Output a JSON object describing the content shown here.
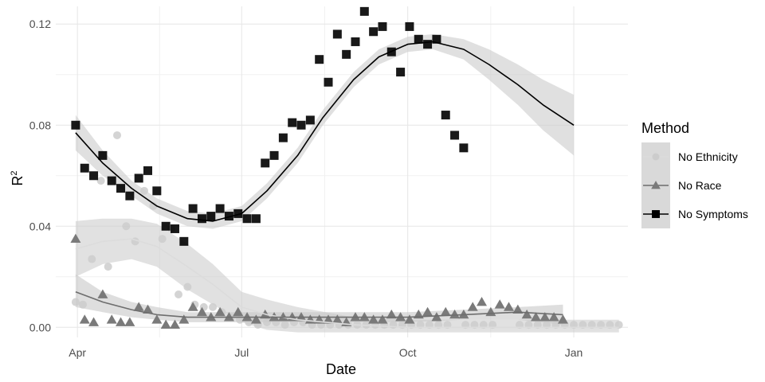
{
  "chart_data": {
    "type": "scatter",
    "title": "",
    "xlabel": "Date",
    "ylabel_base": "R",
    "ylabel_sup": "2",
    "x_ticks": [
      {
        "label": "Apr",
        "date": "2020-04-01"
      },
      {
        "label": "Jul",
        "date": "2020-07-01"
      },
      {
        "label": "Oct",
        "date": "2020-10-01"
      },
      {
        "label": "Jan",
        "date": "2021-01-01"
      }
    ],
    "xlim": [
      "2020-03-20",
      "2021-01-31"
    ],
    "y_ticks": [
      "0.00",
      "0.04",
      "0.08",
      "0.12"
    ],
    "ylim": [
      -0.004,
      0.127
    ],
    "grid": true,
    "legend": {
      "title": "Method",
      "position": "right",
      "entries": [
        "No Ethnicity",
        "No Race",
        "No Symptoms"
      ]
    },
    "series": [
      {
        "name": "No Ethnicity",
        "marker": "circle",
        "color": "#cccccc",
        "band_color": "#cdcdcd",
        "line_color": "#dcdcdc",
        "points": [
          [
            "2020-03-31",
            0.01
          ],
          [
            "2020-04-04",
            0.009
          ],
          [
            "2020-04-09",
            0.027
          ],
          [
            "2020-04-14",
            0.058
          ],
          [
            "2020-04-18",
            0.024
          ],
          [
            "2020-04-23",
            0.076
          ],
          [
            "2020-04-28",
            0.04
          ],
          [
            "2020-05-03",
            0.034
          ],
          [
            "2020-05-08",
            0.054
          ],
          [
            "2020-05-13",
            0.048
          ],
          [
            "2020-05-18",
            0.035
          ],
          [
            "2020-05-23",
            0.039
          ],
          [
            "2020-05-27",
            0.013
          ],
          [
            "2020-06-01",
            0.016
          ],
          [
            "2020-06-05",
            0.009
          ],
          [
            "2020-06-10",
            0.008
          ],
          [
            "2020-06-15",
            0.008
          ],
          [
            "2020-06-20",
            0.006
          ],
          [
            "2020-06-25",
            0.004
          ],
          [
            "2020-06-30",
            0.003
          ],
          [
            "2020-07-05",
            0.002
          ],
          [
            "2020-07-10",
            0.001
          ],
          [
            "2020-07-15",
            0.002
          ],
          [
            "2020-07-20",
            0.002
          ],
          [
            "2020-07-25",
            0.001
          ],
          [
            "2020-07-30",
            0.002
          ],
          [
            "2020-08-04",
            0.002
          ],
          [
            "2020-08-09",
            0.001
          ],
          [
            "2020-08-14",
            0.001
          ],
          [
            "2020-08-19",
            0.001
          ],
          [
            "2020-08-24",
            0.001
          ],
          [
            "2020-08-29",
            0.001
          ],
          [
            "2020-09-03",
            0.001
          ],
          [
            "2020-09-08",
            0.001
          ],
          [
            "2020-09-13",
            0.001
          ],
          [
            "2020-09-18",
            0.001
          ],
          [
            "2020-09-23",
            0.001
          ],
          [
            "2020-09-28",
            0.001
          ],
          [
            "2020-10-03",
            0.001
          ],
          [
            "2020-10-08",
            0.001
          ],
          [
            "2020-10-13",
            0.001
          ],
          [
            "2020-10-18",
            0.001
          ],
          [
            "2020-10-23",
            0.001
          ],
          [
            "2020-11-02",
            0.001
          ],
          [
            "2020-11-07",
            0.001
          ],
          [
            "2020-11-12",
            0.001
          ],
          [
            "2020-11-17",
            0.001
          ],
          [
            "2020-12-02",
            0.001
          ],
          [
            "2020-12-07",
            0.001
          ],
          [
            "2020-12-12",
            0.001
          ],
          [
            "2020-12-17",
            0.001
          ],
          [
            "2020-12-22",
            0.001
          ],
          [
            "2020-12-27",
            0.001
          ],
          [
            "2021-01-01",
            0.001
          ],
          [
            "2021-01-06",
            0.001
          ],
          [
            "2021-01-11",
            0.001
          ],
          [
            "2021-01-16",
            0.001
          ],
          [
            "2021-01-21",
            0.001
          ],
          [
            "2021-01-26",
            0.001
          ]
        ],
        "fit": [
          [
            "2020-03-31",
            0.031
          ],
          [
            "2020-04-15",
            0.034
          ],
          [
            "2020-05-01",
            0.035
          ],
          [
            "2020-05-15",
            0.032
          ],
          [
            "2020-06-01",
            0.024
          ],
          [
            "2020-06-15",
            0.017
          ],
          [
            "2020-07-01",
            0.008
          ],
          [
            "2020-07-15",
            0.005
          ],
          [
            "2020-08-01",
            0.003
          ],
          [
            "2020-09-01",
            0.001
          ],
          [
            "2020-10-01",
            0.0
          ],
          [
            "2020-11-01",
            0.0
          ],
          [
            "2020-12-01",
            0.0
          ],
          [
            "2021-01-01",
            0.0
          ],
          [
            "2021-01-26",
            0.0
          ]
        ],
        "band_lower": [
          0.02,
          0.025,
          0.027,
          0.024,
          0.015,
          0.009,
          0.002,
          -0.001,
          -0.002,
          -0.002,
          -0.002,
          -0.002,
          -0.002,
          -0.002,
          -0.002
        ],
        "band_upper": [
          0.042,
          0.043,
          0.043,
          0.041,
          0.033,
          0.025,
          0.014,
          0.011,
          0.008,
          0.004,
          0.003,
          0.003,
          0.003,
          0.003,
          0.003
        ]
      },
      {
        "name": "No Race",
        "marker": "triangle",
        "color": "#7a7a7a",
        "band_color": "#c8c8c8",
        "line_color": "#6e6e6e",
        "points": [
          [
            "2020-03-31",
            0.035
          ],
          [
            "2020-04-05",
            0.003
          ],
          [
            "2020-04-10",
            0.002
          ],
          [
            "2020-04-15",
            0.013
          ],
          [
            "2020-04-20",
            0.003
          ],
          [
            "2020-04-25",
            0.002
          ],
          [
            "2020-04-30",
            0.002
          ],
          [
            "2020-05-05",
            0.008
          ],
          [
            "2020-05-10",
            0.007
          ],
          [
            "2020-05-15",
            0.003
          ],
          [
            "2020-05-20",
            0.001
          ],
          [
            "2020-05-25",
            0.001
          ],
          [
            "2020-05-30",
            0.003
          ],
          [
            "2020-06-04",
            0.008
          ],
          [
            "2020-06-09",
            0.006
          ],
          [
            "2020-06-14",
            0.004
          ],
          [
            "2020-06-19",
            0.006
          ],
          [
            "2020-06-24",
            0.004
          ],
          [
            "2020-06-29",
            0.006
          ],
          [
            "2020-07-04",
            0.004
          ],
          [
            "2020-07-09",
            0.003
          ],
          [
            "2020-07-14",
            0.005
          ],
          [
            "2020-07-19",
            0.004
          ],
          [
            "2020-07-24",
            0.004
          ],
          [
            "2020-07-29",
            0.004
          ],
          [
            "2020-08-03",
            0.004
          ],
          [
            "2020-08-08",
            0.003
          ],
          [
            "2020-08-13",
            0.003
          ],
          [
            "2020-08-18",
            0.003
          ],
          [
            "2020-08-23",
            0.003
          ],
          [
            "2020-08-28",
            0.002
          ],
          [
            "2020-09-02",
            0.004
          ],
          [
            "2020-09-07",
            0.004
          ],
          [
            "2020-09-12",
            0.003
          ],
          [
            "2020-09-17",
            0.003
          ],
          [
            "2020-09-22",
            0.005
          ],
          [
            "2020-09-27",
            0.004
          ],
          [
            "2020-10-02",
            0.003
          ],
          [
            "2020-10-07",
            0.005
          ],
          [
            "2020-10-12",
            0.006
          ],
          [
            "2020-10-17",
            0.004
          ],
          [
            "2020-10-22",
            0.006
          ],
          [
            "2020-10-27",
            0.005
          ],
          [
            "2020-11-01",
            0.005
          ],
          [
            "2020-11-06",
            0.008
          ],
          [
            "2020-11-11",
            0.01
          ],
          [
            "2020-11-16",
            0.006
          ],
          [
            "2020-11-21",
            0.009
          ],
          [
            "2020-11-26",
            0.008
          ],
          [
            "2020-12-01",
            0.007
          ],
          [
            "2020-12-06",
            0.005
          ],
          [
            "2020-12-11",
            0.004
          ],
          [
            "2020-12-16",
            0.004
          ],
          [
            "2020-12-21",
            0.004
          ],
          [
            "2020-12-26",
            0.003
          ]
        ],
        "fit": [
          [
            "2020-03-31",
            0.014
          ],
          [
            "2020-04-15",
            0.01
          ],
          [
            "2020-05-01",
            0.007
          ],
          [
            "2020-05-15",
            0.005
          ],
          [
            "2020-06-01",
            0.004
          ],
          [
            "2020-07-01",
            0.004
          ],
          [
            "2020-08-01",
            0.004
          ],
          [
            "2020-09-01",
            0.004
          ],
          [
            "2020-10-01",
            0.004
          ],
          [
            "2020-11-01",
            0.005
          ],
          [
            "2020-12-01",
            0.006
          ],
          [
            "2020-12-26",
            0.005
          ]
        ],
        "band_lower": [
          0.008,
          0.006,
          0.004,
          0.003,
          0.002,
          0.002,
          0.002,
          0.002,
          0.002,
          0.003,
          0.003,
          0.001
        ],
        "band_upper": [
          0.021,
          0.014,
          0.01,
          0.008,
          0.006,
          0.006,
          0.006,
          0.006,
          0.006,
          0.007,
          0.008,
          0.009
        ]
      },
      {
        "name": "No Symptoms",
        "marker": "square",
        "color": "#000000",
        "band_color": "#cbcbcb",
        "line_color": "#000000",
        "points": [
          [
            "2020-03-31",
            0.08
          ],
          [
            "2020-04-05",
            0.063
          ],
          [
            "2020-04-10",
            0.06
          ],
          [
            "2020-04-15",
            0.068
          ],
          [
            "2020-04-20",
            0.058
          ],
          [
            "2020-04-25",
            0.055
          ],
          [
            "2020-04-30",
            0.052
          ],
          [
            "2020-05-05",
            0.059
          ],
          [
            "2020-05-10",
            0.062
          ],
          [
            "2020-05-15",
            0.054
          ],
          [
            "2020-05-20",
            0.04
          ],
          [
            "2020-05-25",
            0.039
          ],
          [
            "2020-05-30",
            0.034
          ],
          [
            "2020-06-04",
            0.047
          ],
          [
            "2020-06-09",
            0.043
          ],
          [
            "2020-06-14",
            0.044
          ],
          [
            "2020-06-19",
            0.047
          ],
          [
            "2020-06-24",
            0.044
          ],
          [
            "2020-06-29",
            0.045
          ],
          [
            "2020-07-04",
            0.043
          ],
          [
            "2020-07-09",
            0.043
          ],
          [
            "2020-07-14",
            0.065
          ],
          [
            "2020-07-19",
            0.068
          ],
          [
            "2020-07-24",
            0.075
          ],
          [
            "2020-07-29",
            0.081
          ],
          [
            "2020-08-03",
            0.08
          ],
          [
            "2020-08-08",
            0.082
          ],
          [
            "2020-08-13",
            0.106
          ],
          [
            "2020-08-18",
            0.097
          ],
          [
            "2020-08-23",
            0.116
          ],
          [
            "2020-08-28",
            0.108
          ],
          [
            "2020-09-02",
            0.113
          ],
          [
            "2020-09-07",
            0.125
          ],
          [
            "2020-09-12",
            0.117
          ],
          [
            "2020-09-17",
            0.119
          ],
          [
            "2020-09-22",
            0.109
          ],
          [
            "2020-09-27",
            0.101
          ],
          [
            "2020-10-02",
            0.119
          ],
          [
            "2020-10-07",
            0.114
          ],
          [
            "2020-10-12",
            0.112
          ],
          [
            "2020-10-17",
            0.114
          ],
          [
            "2020-10-22",
            0.084
          ],
          [
            "2020-10-27",
            0.076
          ],
          [
            "2020-11-01",
            0.071
          ]
        ],
        "fit": [
          [
            "2020-03-31",
            0.077
          ],
          [
            "2020-04-15",
            0.065
          ],
          [
            "2020-05-01",
            0.055
          ],
          [
            "2020-05-15",
            0.048
          ],
          [
            "2020-06-01",
            0.043
          ],
          [
            "2020-06-15",
            0.042
          ],
          [
            "2020-07-01",
            0.045
          ],
          [
            "2020-07-15",
            0.054
          ],
          [
            "2020-08-01",
            0.068
          ],
          [
            "2020-08-15",
            0.083
          ],
          [
            "2020-09-01",
            0.098
          ],
          [
            "2020-09-15",
            0.107
          ],
          [
            "2020-10-01",
            0.112
          ],
          [
            "2020-10-15",
            0.113
          ],
          [
            "2020-11-01",
            0.11
          ],
          [
            "2020-11-15",
            0.104
          ],
          [
            "2020-12-01",
            0.096
          ],
          [
            "2020-12-15",
            0.088
          ],
          [
            "2021-01-01",
            0.08
          ]
        ],
        "band_lower": [
          0.07,
          0.06,
          0.052,
          0.045,
          0.04,
          0.039,
          0.042,
          0.051,
          0.065,
          0.08,
          0.095,
          0.104,
          0.109,
          0.11,
          0.106,
          0.098,
          0.088,
          0.078,
          0.068
        ],
        "band_upper": [
          0.084,
          0.07,
          0.058,
          0.051,
          0.046,
          0.045,
          0.048,
          0.057,
          0.071,
          0.086,
          0.101,
          0.11,
          0.115,
          0.116,
          0.114,
          0.11,
          0.104,
          0.098,
          0.092
        ]
      }
    ]
  }
}
